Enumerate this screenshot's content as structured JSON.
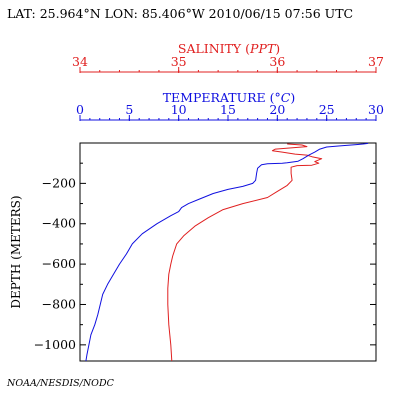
{
  "header": {
    "location_time": "LAT: 25.964°N LON: 85.406°W 2010/06/15 07:56 UTC"
  },
  "credit": "NOAA/NESDIS/NODC",
  "chart_data": {
    "type": "line",
    "ylabel": "DEPTH (METERS)",
    "y_axis": {
      "range": [
        -1080,
        0
      ],
      "ticks": [
        -200,
        -400,
        -600,
        -800,
        -1000
      ],
      "tick_labels": [
        "−200",
        "−400",
        "−600",
        "−800",
        "−1000"
      ]
    },
    "axes": {
      "salinity": {
        "label": "SALINITY",
        "unit": "PPT",
        "range": [
          34,
          37
        ],
        "ticks": [
          34,
          35,
          36,
          37
        ],
        "tick_labels": [
          "34",
          "35",
          "36",
          "37"
        ],
        "color": "#e02020"
      },
      "temperature": {
        "label": "TEMPERATURE",
        "unit": "°C",
        "range": [
          0,
          30
        ],
        "ticks": [
          0,
          5,
          10,
          15,
          20,
          25,
          30
        ],
        "tick_labels": [
          "0",
          "5",
          "10",
          "15",
          "20",
          "25",
          "30"
        ],
        "color": "#1010e0"
      }
    },
    "series": [
      {
        "name": "SALINITY",
        "color": "#e02020",
        "points": [
          [
            36.1,
            -5
          ],
          [
            36.25,
            -10
          ],
          [
            36.3,
            -18
          ],
          [
            35.98,
            -30
          ],
          [
            35.95,
            -38
          ],
          [
            36.05,
            -45
          ],
          [
            36.18,
            -55
          ],
          [
            36.3,
            -60
          ],
          [
            36.35,
            -68
          ],
          [
            36.45,
            -78
          ],
          [
            36.38,
            -92
          ],
          [
            36.42,
            -100
          ],
          [
            36.35,
            -110
          ],
          [
            36.2,
            -112
          ],
          [
            36.14,
            -120
          ],
          [
            36.14,
            -150
          ],
          [
            36.15,
            -185
          ],
          [
            36.1,
            -210
          ],
          [
            36.0,
            -240
          ],
          [
            35.9,
            -270
          ],
          [
            35.65,
            -300
          ],
          [
            35.45,
            -330
          ],
          [
            35.3,
            -370
          ],
          [
            35.17,
            -410
          ],
          [
            35.05,
            -460
          ],
          [
            34.98,
            -500
          ],
          [
            34.94,
            -560
          ],
          [
            34.92,
            -600
          ],
          [
            34.9,
            -650
          ],
          [
            34.89,
            -720
          ],
          [
            34.89,
            -800
          ],
          [
            34.9,
            -900
          ],
          [
            34.92,
            -1000
          ],
          [
            34.93,
            -1080
          ]
        ]
      },
      {
        "name": "TEMPERATURE",
        "color": "#1010e0",
        "points": [
          [
            29.2,
            -2
          ],
          [
            28.7,
            -5
          ],
          [
            28.0,
            -8
          ],
          [
            27.0,
            -12
          ],
          [
            26.2,
            -15
          ],
          [
            25.0,
            -20
          ],
          [
            24.3,
            -30
          ],
          [
            23.8,
            -45
          ],
          [
            23.2,
            -60
          ],
          [
            22.6,
            -78
          ],
          [
            22.1,
            -90
          ],
          [
            21.0,
            -98
          ],
          [
            20.5,
            -100
          ],
          [
            19.0,
            -103
          ],
          [
            18.4,
            -108
          ],
          [
            18.0,
            -125
          ],
          [
            17.9,
            -150
          ],
          [
            17.8,
            -185
          ],
          [
            17.5,
            -200
          ],
          [
            16.5,
            -215
          ],
          [
            15.0,
            -230
          ],
          [
            13.5,
            -250
          ],
          [
            12.0,
            -280
          ],
          [
            11.0,
            -300
          ],
          [
            10.3,
            -320
          ],
          [
            10.0,
            -340
          ],
          [
            9.2,
            -360
          ],
          [
            7.8,
            -400
          ],
          [
            6.3,
            -450
          ],
          [
            5.3,
            -500
          ],
          [
            4.7,
            -550
          ],
          [
            4.0,
            -600
          ],
          [
            3.4,
            -650
          ],
          [
            2.8,
            -700
          ],
          [
            2.3,
            -750
          ],
          [
            1.8,
            -850
          ],
          [
            1.5,
            -900
          ],
          [
            1.1,
            -950
          ],
          [
            0.9,
            -1000
          ],
          [
            0.7,
            -1050
          ],
          [
            0.6,
            -1080
          ]
        ]
      }
    ]
  }
}
